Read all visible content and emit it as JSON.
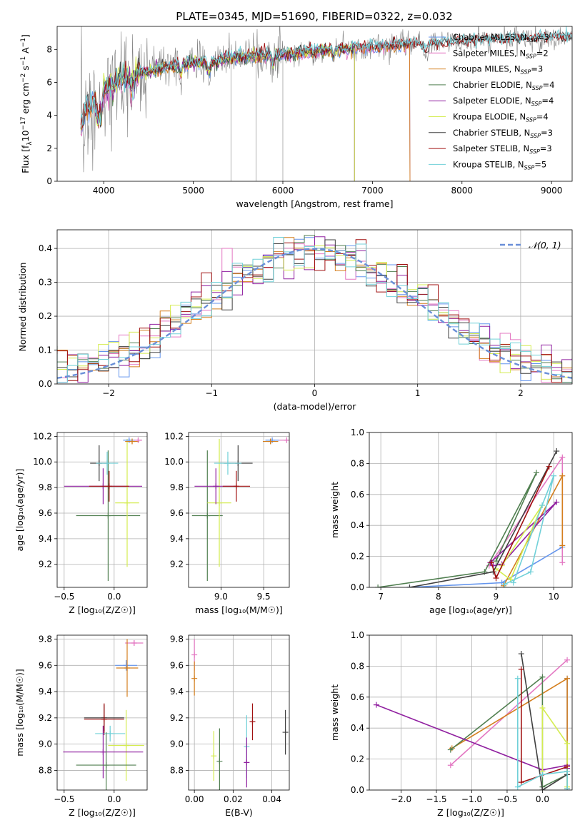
{
  "figure_title": "PLATE=0345, MJD=51690, FIBERID=0322, z=0.032",
  "colors": {
    "Chabrier MILES": "#6495ed",
    "Salpeter MILES": "#e377c2",
    "Kroupa MILES": "#d47f1e",
    "Chabrier ELODIE": "#507f50",
    "Salpeter ELODIE": "#9020a0",
    "Kroupa ELODIE": "#d4ec50",
    "Chabrier STELIB": "#404040",
    "Salpeter STELIB": "#a01010",
    "Kroupa STELIB": "#70d0d8",
    "data": "#808080",
    "normal": "#6a8fd8"
  },
  "chart_data": [
    {
      "id": "spectrum",
      "type": "line",
      "title": "PLATE=0345, MJD=51690, FIBERID=0322, z=0.032",
      "xlabel": "wavelength [Angstrom, rest frame]",
      "ylabel_main": "Flux [f",
      "ylabel_sub": "λ",
      "ylabel_mid": "10",
      "ylabel_sup1": "−17",
      "ylabel_rest": " erg cm",
      "ylabel_sup2": "−2",
      "ylabel_s": " s",
      "ylabel_sup3": "−1",
      "ylabel_end": " A",
      "ylabel_sup4": "−1",
      "ylabel_close": "]",
      "xlim": [
        3480,
        9230
      ],
      "ylim": [
        0,
        9.4
      ],
      "xticks": [
        4000,
        5000,
        6000,
        7000,
        8000,
        9000
      ],
      "yticks": [
        0,
        2,
        4,
        6,
        8
      ],
      "legend": [
        {
          "label": "Chabrier MILES, N",
          "sub": "SSP",
          "tail": "=3",
          "key": "Chabrier MILES"
        },
        {
          "label": "Salpeter MILES, N",
          "sub": "SSP",
          "tail": "=2",
          "key": "Salpeter MILES"
        },
        {
          "label": "Kroupa MILES, N",
          "sub": "SSP",
          "tail": "=3",
          "key": "Kroupa MILES"
        },
        {
          "label": "Chabrier ELODIE, N",
          "sub": "SSP",
          "tail": "=4",
          "key": "Chabrier ELODIE"
        },
        {
          "label": "Salpeter ELODIE, N",
          "sub": "SSP",
          "tail": "=4",
          "key": "Salpeter ELODIE"
        },
        {
          "label": "Kroupa ELODIE, N",
          "sub": "SSP",
          "tail": "=4",
          "key": "Kroupa ELODIE"
        },
        {
          "label": "Chabrier STELIB, N",
          "sub": "SSP",
          "tail": "=3",
          "key": "Chabrier STELIB"
        },
        {
          "label": "Salpeter STELIB, N",
          "sub": "SSP",
          "tail": "=3",
          "key": "Salpeter STELIB"
        },
        {
          "label": "Kroupa STELIB, N",
          "sub": "SSP",
          "tail": "=5",
          "key": "Kroupa STELIB"
        }
      ],
      "data_range": [
        3745,
        9230
      ],
      "model_ranges": {
        "MILES": [
          3745,
          7420
        ],
        "ELODIE": [
          3900,
          6800
        ],
        "STELIB": [
          3745,
          9230
        ]
      },
      "continuum": [
        [
          3745,
          3.3
        ],
        [
          3800,
          4.3
        ],
        [
          3900,
          5.0
        ],
        [
          4000,
          5.6
        ],
        [
          4200,
          6.2
        ],
        [
          4500,
          6.7
        ],
        [
          5000,
          7.2
        ],
        [
          5500,
          7.5
        ],
        [
          6000,
          7.7
        ],
        [
          6500,
          7.95
        ],
        [
          7000,
          8.15
        ],
        [
          7500,
          8.35
        ],
        [
          8000,
          8.45
        ],
        [
          8500,
          8.6
        ],
        [
          9000,
          8.7
        ],
        [
          9230,
          8.72
        ]
      ]
    },
    {
      "id": "residuals",
      "type": "histogram",
      "xlabel": "(data-model)/error",
      "ylabel": "Normed distribution",
      "xlim": [
        -2.5,
        2.5
      ],
      "ylim": [
        0,
        0.455
      ],
      "xticks": [
        -2,
        -1,
        0,
        1,
        2
      ],
      "xtick_labels": [
        "−2",
        "−1",
        "0",
        "1",
        "2"
      ],
      "yticks": [
        0,
        0.1,
        0.2,
        0.3,
        0.4
      ],
      "ytick_labels": [
        "0.0",
        "0.1",
        "0.2",
        "0.3",
        "0.4"
      ],
      "legend": "𝒩(0, 1)",
      "bin_width": 0.1
    },
    {
      "id": "age_vs_Z",
      "type": "errorbar",
      "xlabel": "Z [log₁₀(Z/Z☉)]",
      "ylabel": "age  [log₁₀(age/yr)]",
      "xlim": [
        -0.57,
        0.33
      ],
      "ylim": [
        9.02,
        10.23
      ],
      "xticks": [
        -0.5,
        0.0
      ],
      "xtick_labels": [
        "−0.5",
        "0.0"
      ],
      "yticks": [
        9.2,
        9.4,
        9.6,
        9.8,
        10.0,
        10.2
      ],
      "ytick_labels": [
        "9.2",
        "9.4",
        "9.6",
        "9.8",
        "10.0",
        "10.2"
      ],
      "points": [
        {
          "key": "Chabrier ELODIE",
          "x": -0.06,
          "xerr": 0.32,
          "y": 9.58,
          "yerr": 0.51
        },
        {
          "key": "Kroupa ELODIE",
          "x": 0.13,
          "xerr": 0.12,
          "y": 9.68,
          "yerr": 0.5
        },
        {
          "key": "Salpeter ELODIE",
          "x": -0.11,
          "xerr": 0.39,
          "y": 9.81,
          "yerr": 0.14
        },
        {
          "key": "Salpeter STELIB",
          "x": -0.05,
          "xerr": 0.2,
          "y": 9.81,
          "yerr": 0.12
        },
        {
          "key": "Chabrier STELIB",
          "x": -0.15,
          "xerr": 0.09,
          "y": 9.99,
          "yerr": 0.14
        },
        {
          "key": "Kroupa STELIB",
          "x": -0.07,
          "xerr": 0.11,
          "y": 9.99,
          "yerr": 0.09
        },
        {
          "key": "Chabrier MILES",
          "x": 0.15,
          "xerr": 0.06,
          "y": 10.17,
          "yerr": 0.01
        },
        {
          "key": "Kroupa MILES",
          "x": 0.18,
          "xerr": 0.07,
          "y": 10.16,
          "yerr": 0.02
        },
        {
          "key": "Salpeter MILES",
          "x": 0.24,
          "xerr": 0.04,
          "y": 10.17,
          "yerr": 0.01
        }
      ]
    },
    {
      "id": "age_vs_mass",
      "type": "errorbar",
      "xlabel": "mass [log₁₀(M/M☉)]",
      "xlim": [
        8.62,
        9.8
      ],
      "ylim": [
        9.02,
        10.23
      ],
      "xticks": [
        9.0,
        9.5
      ],
      "xtick_labels": [
        "9.0",
        "9.5"
      ],
      "yticks": [
        9.2,
        9.4,
        9.6,
        9.8,
        10.0,
        10.2
      ],
      "ytick_labels": [
        "9.2",
        "9.4",
        "9.6",
        "9.8",
        "10.0",
        "10.2"
      ],
      "points": [
        {
          "key": "Chabrier ELODIE",
          "x": 8.84,
          "xerr": 0.18,
          "y": 9.58,
          "yerr": 0.51
        },
        {
          "key": "Kroupa ELODIE",
          "x": 8.98,
          "xerr": 0.14,
          "y": 9.68,
          "yerr": 0.5
        },
        {
          "key": "Salpeter ELODIE",
          "x": 8.94,
          "xerr": 0.25,
          "y": 9.81,
          "yerr": 0.14
        },
        {
          "key": "Salpeter STELIB",
          "x": 9.18,
          "xerr": 0.16,
          "y": 9.81,
          "yerr": 0.12
        },
        {
          "key": "Chabrier STELIB",
          "x": 9.2,
          "xerr": 0.17,
          "y": 9.99,
          "yerr": 0.14
        },
        {
          "key": "Kroupa STELIB",
          "x": 9.08,
          "xerr": 0.16,
          "y": 9.99,
          "yerr": 0.09
        },
        {
          "key": "Chabrier MILES",
          "x": 9.6,
          "xerr": 0.08,
          "y": 10.17,
          "yerr": 0.01
        },
        {
          "key": "Kroupa MILES",
          "x": 9.58,
          "xerr": 0.09,
          "y": 10.16,
          "yerr": 0.02
        },
        {
          "key": "Salpeter MILES",
          "x": 9.77,
          "xerr": 0.09,
          "y": 10.17,
          "yerr": 0.01
        }
      ]
    },
    {
      "id": "weight_vs_age",
      "type": "line",
      "xlabel": "age  [log₁₀(age/yr)]",
      "ylabel": "mass weight",
      "xlim": [
        6.8,
        10.32
      ],
      "ylim": [
        0,
        1.0
      ],
      "xticks": [
        7,
        8,
        9,
        10
      ],
      "xtick_labels": [
        "7",
        "8",
        "9",
        "10"
      ],
      "yticks": [
        0,
        0.2,
        0.4,
        0.6,
        0.8,
        1.0
      ],
      "ytick_labels": [
        "0.0",
        "0.2",
        "0.4",
        "0.6",
        "0.8",
        "1.0"
      ],
      "series": [
        {
          "key": "Chabrier MILES",
          "x": [
            7.5,
            9.1,
            10.15
          ],
          "y": [
            0.0,
            0.03,
            0.26
          ]
        },
        {
          "key": "Salpeter MILES",
          "x": [
            8.88,
            10.15,
            10.15
          ],
          "y": [
            0.14,
            0.84,
            0.16
          ]
        },
        {
          "key": "Kroupa MILES",
          "x": [
            9.13,
            10.15,
            10.15
          ],
          "y": [
            0.01,
            0.72,
            0.27
          ]
        },
        {
          "key": "Chabrier ELODIE",
          "x": [
            6.95,
            8.8,
            9.7,
            9.0
          ],
          "y": [
            0.0,
            0.1,
            0.74,
            0.17
          ]
        },
        {
          "key": "Salpeter ELODIE",
          "x": [
            8.95,
            9.1,
            10.05,
            8.9
          ],
          "y": [
            0.14,
            0.15,
            0.55,
            0.16
          ]
        },
        {
          "key": "Kroupa ELODIE",
          "x": [
            9.0,
            9.25,
            9.8,
            9.1
          ],
          "y": [
            0.12,
            0.05,
            0.53,
            0.14
          ]
        },
        {
          "key": "Chabrier STELIB",
          "x": [
            7.5,
            8.95,
            10.05
          ],
          "y": [
            0.0,
            0.1,
            0.88
          ]
        },
        {
          "key": "Salpeter STELIB",
          "x": [
            8.92,
            9.0,
            9.92
          ],
          "y": [
            0.16,
            0.06,
            0.78
          ]
        },
        {
          "key": "Kroupa STELIB",
          "x": [
            9.15,
            9.6,
            10.0,
            9.8,
            9.3
          ],
          "y": [
            0.02,
            0.1,
            0.72,
            0.53,
            0.03
          ]
        }
      ]
    },
    {
      "id": "mass_vs_Z",
      "type": "errorbar",
      "xlabel": "Z [log₁₀(Z/Z☉)]",
      "ylabel": "mass [log₁₀(M/M☉)]",
      "xlim": [
        -0.57,
        0.33
      ],
      "ylim": [
        8.65,
        9.83
      ],
      "xticks": [
        -0.5,
        0.0
      ],
      "xtick_labels": [
        "−0.5",
        "0.0"
      ],
      "yticks": [
        8.8,
        9.0,
        9.2,
        9.4,
        9.6,
        9.8
      ],
      "ytick_labels": [
        "8.8",
        "9.0",
        "9.2",
        "9.4",
        "9.6",
        "9.8"
      ],
      "points": [
        {
          "key": "Salpeter MILES",
          "x": 0.2,
          "xerr": 0.09,
          "y": 9.77,
          "yerr": 0.02
        },
        {
          "key": "Chabrier MILES",
          "x": 0.12,
          "xerr": 0.11,
          "y": 9.6,
          "yerr": 0.04
        },
        {
          "key": "Kroupa MILES",
          "x": 0.13,
          "xerr": 0.11,
          "y": 9.58,
          "yerr": 0.22
        },
        {
          "key": "Chabrier STELIB",
          "x": -0.1,
          "xerr": 0.2,
          "y": 9.2,
          "yerr": 0.1
        },
        {
          "key": "Salpeter STELIB",
          "x": -0.1,
          "xerr": 0.2,
          "y": 9.19,
          "yerr": 0.12
        },
        {
          "key": "Kroupa STELIB",
          "x": -0.04,
          "xerr": 0.15,
          "y": 9.08,
          "yerr": 0.06
        },
        {
          "key": "Kroupa ELODIE",
          "x": 0.12,
          "xerr": 0.18,
          "y": 8.99,
          "yerr": 0.27
        },
        {
          "key": "Salpeter ELODIE",
          "x": -0.11,
          "xerr": 0.4,
          "y": 8.94,
          "yerr": 0.2
        },
        {
          "key": "Chabrier ELODIE",
          "x": -0.08,
          "xerr": 0.3,
          "y": 8.84,
          "yerr": 0.25
        }
      ]
    },
    {
      "id": "mass_vs_EBV",
      "type": "errorbar",
      "xlabel": "E(B-V)",
      "xlim": [
        -0.003,
        0.049
      ],
      "ylim": [
        8.65,
        9.83
      ],
      "xticks": [
        0.0,
        0.02,
        0.04
      ],
      "xtick_labels": [
        "0.00",
        "0.02",
        "0.04"
      ],
      "yticks": [
        8.8,
        9.0,
        9.2,
        9.4,
        9.6,
        9.8
      ],
      "ytick_labels": [
        "8.8",
        "9.0",
        "9.2",
        "9.4",
        "9.6",
        "9.8"
      ],
      "points": [
        {
          "key": "Salpeter MILES",
          "x": 0.0,
          "xerr": 0,
          "y": 9.68,
          "yerr": 0.12
        },
        {
          "key": "Kroupa MILES",
          "x": 0.0,
          "xerr": 0,
          "y": 9.5,
          "yerr": 0.13
        },
        {
          "key": "Kroupa ELODIE",
          "x": 0.01,
          "xerr": 0,
          "y": 8.91,
          "yerr": 0.19
        },
        {
          "key": "Chabrier ELODIE",
          "x": 0.013,
          "xerr": 0,
          "y": 8.87,
          "yerr": 0.25
        },
        {
          "key": "Kroupa STELIB",
          "x": 0.027,
          "xerr": 0,
          "y": 8.98,
          "yerr": 0.24
        },
        {
          "key": "Salpeter ELODIE",
          "x": 0.027,
          "xerr": 0,
          "y": 8.86,
          "yerr": 0.19
        },
        {
          "key": "Salpeter STELIB",
          "x": 0.03,
          "xerr": 0,
          "y": 9.17,
          "yerr": 0.14
        },
        {
          "key": "Chabrier STELIB",
          "x": 0.047,
          "xerr": 0,
          "y": 9.09,
          "yerr": 0.17
        }
      ]
    },
    {
      "id": "weight_vs_Z",
      "type": "line",
      "xlabel": "Z [log₁₀(Z/Z☉)]",
      "ylabel": "mass weight",
      "xlim": [
        -2.45,
        0.42
      ],
      "ylim": [
        0,
        1.0
      ],
      "xticks": [
        -2.0,
        -1.5,
        -1.0,
        -0.5,
        0.0
      ],
      "xtick_labels": [
        "−2.0",
        "−1.5",
        "−1.0",
        "−0.5",
        "0.0"
      ],
      "yticks": [
        0,
        0.2,
        0.4,
        0.6,
        0.8,
        1.0
      ],
      "ytick_labels": [
        "0.0",
        "0.2",
        "0.4",
        "0.6",
        "0.8",
        "1.0"
      ],
      "series": [
        {
          "key": "Chabrier MILES",
          "x": [
            0.35,
            0.35
          ],
          "y": [
            0.72,
            0.0
          ]
        },
        {
          "key": "Salpeter MILES",
          "x": [
            -1.3,
            0.35
          ],
          "y": [
            0.16,
            0.84
          ]
        },
        {
          "key": "Kroupa MILES",
          "x": [
            -1.28,
            0.35,
            0.35
          ],
          "y": [
            0.27,
            0.72,
            0.01
          ]
        },
        {
          "key": "Chabrier ELODIE",
          "x": [
            -1.3,
            0.0,
            0.0,
            0.35
          ],
          "y": [
            0.26,
            0.73,
            0.02,
            0.1
          ]
        },
        {
          "key": "Salpeter ELODIE",
          "x": [
            -2.35,
            0.0,
            0.35,
            0.35
          ],
          "y": [
            0.55,
            0.13,
            0.16,
            0.14
          ]
        },
        {
          "key": "Kroupa ELODIE",
          "x": [
            0.0,
            0.0,
            0.35,
            0.35
          ],
          "y": [
            0.12,
            0.53,
            0.3,
            0.02
          ]
        },
        {
          "key": "Chabrier STELIB",
          "x": [
            -0.3,
            0.0,
            0.35,
            0.35
          ],
          "y": [
            0.88,
            0.0,
            0.1,
            0.12
          ]
        },
        {
          "key": "Salpeter STELIB",
          "x": [
            -0.3,
            -0.3,
            0.35
          ],
          "y": [
            0.78,
            0.05,
            0.15
          ]
        },
        {
          "key": "Kroupa STELIB",
          "x": [
            -0.35,
            -0.35,
            0.0,
            0.35,
            0.35
          ],
          "y": [
            0.72,
            0.02,
            0.1,
            0.12,
            0.01
          ]
        }
      ]
    }
  ]
}
